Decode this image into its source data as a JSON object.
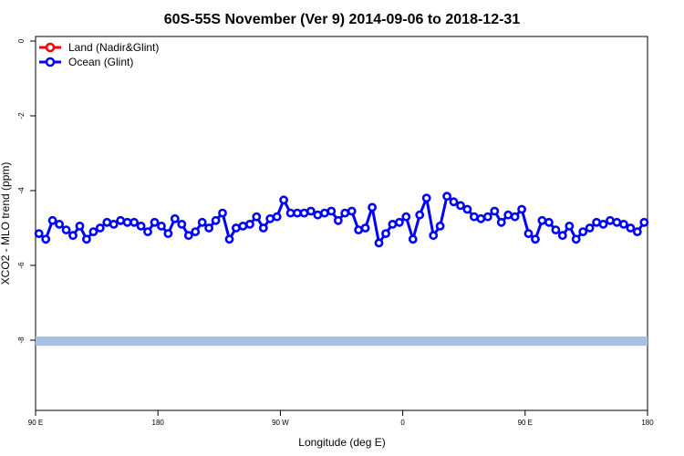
{
  "chart_data": {
    "type": "line",
    "title": "60S-55S November (Ver 9)   2014-09-06 to 2018-12-31",
    "xlabel": "Longitude (deg E)",
    "ylabel": "XCO2 - MLO trend (ppm)",
    "x_ticks": [
      "90 E",
      "180",
      "90 W",
      "0",
      "90 E",
      "180"
    ],
    "y_ticks": [
      "0",
      "-2",
      "-4",
      "-6",
      "-8"
    ],
    "ylim": [
      -10,
      0
    ],
    "xlim": [
      90,
      540
    ],
    "grid": false,
    "legend_position": "top-left",
    "colors": {
      "land": "#ff0000",
      "ocean": "#0000ff",
      "band": "#a9bfe0"
    },
    "series": [
      {
        "name": "Land (Nadir&Glint)",
        "x": [],
        "values": []
      },
      {
        "name": "Ocean (Glint)",
        "x": [
          92.5,
          97.5,
          102.5,
          107.5,
          112.5,
          117.5,
          122.5,
          127.5,
          132.5,
          137.5,
          142.5,
          147.5,
          152.5,
          157.5,
          162.5,
          167.5,
          172.5,
          177.5,
          182.5,
          187.5,
          192.5,
          197.5,
          202.5,
          207.5,
          212.5,
          217.5,
          222.5,
          227.5,
          232.5,
          237.5,
          242.5,
          247.5,
          252.5,
          257.5,
          262.5,
          267.5,
          272.5,
          277.5,
          282.5,
          287.5,
          292.5,
          297.5,
          302.5,
          307.5,
          312.5,
          317.5,
          322.5,
          327.5,
          332.5,
          337.5,
          342.5,
          347.5,
          352.5,
          357.5,
          362.5,
          367.5,
          372.5,
          377.5,
          382.5,
          387.5,
          392.5,
          397.5,
          402.5,
          407.5,
          412.5,
          417.5,
          422.5,
          427.5,
          432.5,
          437.5,
          442.5,
          447.5,
          452.5,
          457.5,
          462.5,
          467.5,
          472.5,
          477.5,
          482.5,
          487.5,
          492.5,
          497.5,
          502.5,
          507.5,
          512.5,
          517.5,
          522.5,
          527.5,
          532.5,
          537.5
        ],
        "values": [
          -5.15,
          -5.3,
          -4.8,
          -4.9,
          -5.05,
          -5.2,
          -4.95,
          -5.3,
          -5.1,
          -5.0,
          -4.85,
          -4.9,
          -4.8,
          -4.85,
          -4.85,
          -4.95,
          -5.1,
          -4.85,
          -4.95,
          -5.15,
          -4.75,
          -4.9,
          -5.2,
          -5.1,
          -4.85,
          -5.0,
          -4.8,
          -4.6,
          -5.3,
          -5.0,
          -4.95,
          -4.9,
          -4.7,
          -5.0,
          -4.75,
          -4.7,
          -4.25,
          -4.6,
          -4.6,
          -4.6,
          -4.55,
          -4.65,
          -4.6,
          -4.55,
          -4.8,
          -4.6,
          -4.55,
          -5.05,
          -5.0,
          -4.45,
          -5.4,
          -5.15,
          -4.9,
          -4.85,
          -4.7,
          -5.3,
          -4.65,
          -4.2,
          -5.2,
          -4.95,
          -4.15,
          -4.3,
          -4.4,
          -4.5,
          -4.7,
          -4.75,
          -4.7,
          -4.55,
          -4.85,
          -4.65,
          -4.7,
          -4.5,
          -5.15,
          -5.3,
          -4.8,
          -4.85,
          -5.05,
          -5.2,
          -4.95,
          -5.3,
          -5.1,
          -5.0,
          -4.85,
          -4.9,
          -4.8,
          -4.85,
          -4.9,
          -5.0,
          -5.1,
          -4.85
        ]
      }
    ],
    "band": {
      "y_from": -7.9,
      "y_to": -8.15
    }
  }
}
